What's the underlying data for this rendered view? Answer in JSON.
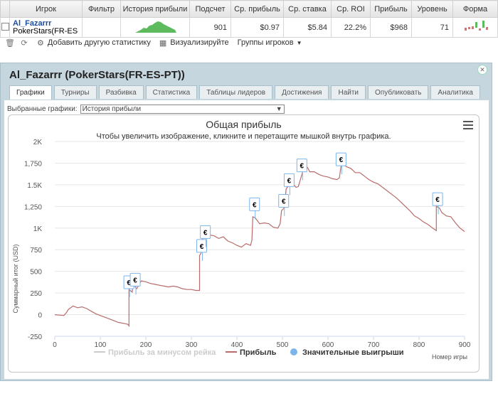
{
  "table": {
    "headers": [
      "Игрок",
      "Фильтр",
      "История прибыли",
      "Подсчет",
      "Ср. прибыль",
      "Ср. ставка",
      "Ср. ROI",
      "Прибыль",
      "Уровень",
      "Форма"
    ],
    "row": {
      "player_name": "Al_Fazarrr",
      "player_site": "PokerStars(FR-ES-PT)",
      "filter": "",
      "count": "901",
      "avg_profit": "$0.97",
      "avg_stake": "$5.84",
      "avg_roi": "22.2%",
      "profit": "$968",
      "level": "71"
    }
  },
  "toolbar": {
    "add_stat": "Добавить другую статистику",
    "visualize": "Визуализируйте",
    "groups": "Группы игроков"
  },
  "panel": {
    "title": "Al_Fazarrr (PokerStars(FR-ES-PT))",
    "tabs": [
      "Графики",
      "Турниры",
      "Разбивка",
      "Статистика",
      "Таблицы лидеров",
      "Достижения",
      "Найти",
      "Опубликовать",
      "Аналитика"
    ],
    "selected_label": "Выбранные графики:",
    "selected_value": "История прибыли"
  },
  "chart_data": {
    "type": "line",
    "title": "Общая прибыль",
    "subtitle": "Чтобы увеличить изображение, кликните и перетащите мышкой внутрь графика.",
    "xlabel": "Номер игры",
    "ylabel": "Суммарный итог (USD)",
    "xlim": [
      0,
      900
    ],
    "ylim": [
      -250,
      2000
    ],
    "xticks": [
      0,
      100,
      200,
      300,
      400,
      500,
      600,
      700,
      800,
      900
    ],
    "xtick_labels": [
      "0",
      "100",
      "200",
      "300",
      "400",
      "500",
      "600",
      "700",
      "800",
      "900"
    ],
    "yticks": [
      -250,
      0,
      250,
      500,
      750,
      1000,
      1250,
      1500,
      1750,
      2000
    ],
    "ytick_labels": [
      "-250",
      "0",
      "250",
      "500",
      "750",
      "1K",
      "1,250",
      "1.5K",
      "1,750",
      "2K"
    ],
    "series": [
      {
        "name": "Прибыль за минусом рейка",
        "color": "#cccccc",
        "values": []
      },
      {
        "name": "Прибыль",
        "color": "#b96b6b",
        "points": [
          [
            0,
            0
          ],
          [
            10,
            -5
          ],
          [
            20,
            -10
          ],
          [
            25,
            20
          ],
          [
            30,
            60
          ],
          [
            40,
            100
          ],
          [
            50,
            80
          ],
          [
            60,
            90
          ],
          [
            70,
            70
          ],
          [
            80,
            40
          ],
          [
            90,
            10
          ],
          [
            100,
            -10
          ],
          [
            110,
            -30
          ],
          [
            120,
            -50
          ],
          [
            130,
            -70
          ],
          [
            140,
            -90
          ],
          [
            150,
            -100
          ],
          [
            160,
            -110
          ],
          [
            163,
            -130
          ],
          [
            163,
            290
          ],
          [
            170,
            260
          ],
          [
            172,
            350
          ],
          [
            180,
            300
          ],
          [
            190,
            390
          ],
          [
            200,
            380
          ],
          [
            210,
            360
          ],
          [
            220,
            350
          ],
          [
            230,
            340
          ],
          [
            240,
            330
          ],
          [
            250,
            320
          ],
          [
            260,
            330
          ],
          [
            270,
            320
          ],
          [
            280,
            300
          ],
          [
            290,
            290
          ],
          [
            300,
            290
          ],
          [
            310,
            280
          ],
          [
            318,
            280
          ],
          [
            318,
            680
          ],
          [
            322,
            720
          ],
          [
            325,
            890
          ],
          [
            330,
            920
          ],
          [
            335,
            960
          ],
          [
            340,
            920
          ],
          [
            350,
            910
          ],
          [
            360,
            880
          ],
          [
            370,
            900
          ],
          [
            380,
            850
          ],
          [
            390,
            830
          ],
          [
            400,
            800
          ],
          [
            410,
            780
          ],
          [
            420,
            820
          ],
          [
            430,
            800
          ],
          [
            433,
            860
          ],
          [
            435,
            1130
          ],
          [
            440,
            1120
          ],
          [
            450,
            1050
          ],
          [
            460,
            1060
          ],
          [
            470,
            1050
          ],
          [
            480,
            1010
          ],
          [
            490,
            1000
          ],
          [
            495,
            1050
          ],
          [
            498,
            1200
          ],
          [
            505,
            1240
          ],
          [
            508,
            1450
          ],
          [
            512,
            1480
          ],
          [
            515,
            1520
          ],
          [
            520,
            1570
          ],
          [
            525,
            1500
          ],
          [
            530,
            1470
          ],
          [
            535,
            1480
          ],
          [
            540,
            1570
          ],
          [
            545,
            1660
          ],
          [
            550,
            1720
          ],
          [
            555,
            1700
          ],
          [
            560,
            1650
          ],
          [
            570,
            1650
          ],
          [
            580,
            1620
          ],
          [
            590,
            1600
          ],
          [
            600,
            1590
          ],
          [
            610,
            1570
          ],
          [
            620,
            1560
          ],
          [
            625,
            1580
          ],
          [
            630,
            1760
          ],
          [
            640,
            1710
          ],
          [
            650,
            1690
          ],
          [
            660,
            1640
          ],
          [
            670,
            1640
          ],
          [
            680,
            1600
          ],
          [
            690,
            1560
          ],
          [
            700,
            1530
          ],
          [
            710,
            1510
          ],
          [
            720,
            1470
          ],
          [
            730,
            1430
          ],
          [
            740,
            1390
          ],
          [
            750,
            1350
          ],
          [
            760,
            1300
          ],
          [
            770,
            1250
          ],
          [
            780,
            1200
          ],
          [
            790,
            1140
          ],
          [
            800,
            1110
          ],
          [
            810,
            1070
          ],
          [
            820,
            1040
          ],
          [
            830,
            1000
          ],
          [
            838,
            970
          ],
          [
            838,
            1250
          ],
          [
            845,
            1230
          ],
          [
            850,
            1180
          ],
          [
            860,
            1140
          ],
          [
            870,
            1130
          ],
          [
            880,
            1060
          ],
          [
            890,
            1000
          ],
          [
            900,
            960
          ]
        ]
      }
    ],
    "markers": [
      {
        "x": 158,
        "y": 300,
        "label": "€"
      },
      {
        "x": 172,
        "y": 330,
        "label": "€"
      },
      {
        "x": 318,
        "y": 720,
        "label": "€"
      },
      {
        "x": 326,
        "y": 880,
        "label": "€"
      },
      {
        "x": 434,
        "y": 1200,
        "label": "€"
      },
      {
        "x": 498,
        "y": 1240,
        "label": "€"
      },
      {
        "x": 510,
        "y": 1480,
        "label": "€"
      },
      {
        "x": 538,
        "y": 1650,
        "label": "€"
      },
      {
        "x": 624,
        "y": 1720,
        "label": "€"
      },
      {
        "x": 836,
        "y": 1260,
        "label": "€"
      }
    ],
    "legend": [
      {
        "label": "Прибыль за минусом рейка",
        "color": "#cccccc",
        "kind": "line"
      },
      {
        "label": "Прибыль",
        "color": "#b96b6b",
        "kind": "line"
      },
      {
        "label": "Значительные выигрыши",
        "color": "#7cb5ec",
        "kind": "dot"
      }
    ],
    "legend_position": "bottom",
    "grid": "horizontal"
  }
}
